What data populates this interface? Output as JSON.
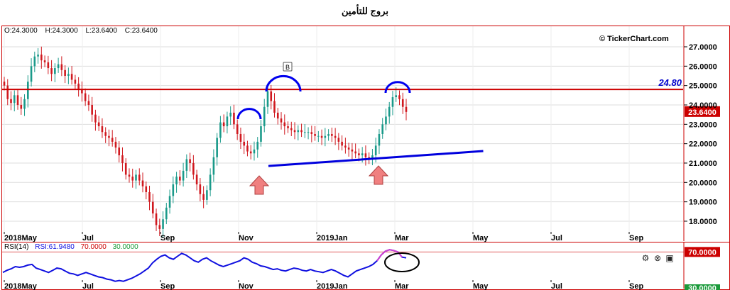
{
  "title": "بروج للتأمين",
  "watermark": "© TickerChart.com",
  "ohlc": {
    "open": "O:24.3000",
    "high": "H:24.3000",
    "low": "L:23.6400",
    "close": "C:23.6400"
  },
  "rsi_legend": {
    "name": "RSI(14)",
    "value": "RSI:61.9480",
    "upper": "70.0000",
    "lower": "30.0000"
  },
  "colors": {
    "up": "#1a9a8a",
    "down": "#d0191f",
    "rsi": "#1010e0",
    "accent": "#cc0000",
    "trend": "#0000dd",
    "arrow": "#f08080"
  },
  "icons": [
    "gear-icon",
    "close-icon",
    "maximize-icon"
  ],
  "annotations": {
    "resistance_label": "24.80",
    "marker_label": "B",
    "last_price_label": "23.6400",
    "rsi_upper_label": "70.0000",
    "rsi_lower_label": "30.0000"
  },
  "chart_data": {
    "type": "candlestick",
    "x_tick_labels": [
      "2018May",
      "Jul",
      "Sep",
      "Nov",
      "2019Jan",
      "Mar",
      "May",
      "Jul",
      "Sep"
    ],
    "y_tick_labels": [
      "18.0000",
      "19.0000",
      "20.0000",
      "21.0000",
      "22.0000",
      "23.0000",
      "24.0000",
      "25.0000",
      "26.0000",
      "27.0000"
    ],
    "ylim": [
      17.5,
      28
    ],
    "resistance": 24.8,
    "last_price": 23.64,
    "trendline": [
      {
        "month": 6.8,
        "value": 20.85
      },
      {
        "month": 12.3,
        "value": 21.62
      }
    ],
    "closes": [
      25.0,
      24.3,
      24.1,
      24.5,
      24.0,
      23.8,
      24.3,
      25.2,
      26.0,
      26.5,
      26.6,
      26.3,
      26.2,
      25.9,
      25.6,
      25.9,
      26.1,
      25.8,
      25.5,
      25.6,
      25.3,
      25.1,
      24.8,
      24.6,
      24.2,
      24.0,
      23.5,
      23.1,
      22.9,
      22.6,
      22.4,
      22.3,
      22.1,
      21.8,
      21.4,
      21.0,
      20.4,
      20.3,
      20.1,
      20.4,
      20.1,
      19.8,
      19.5,
      19.0,
      18.4,
      17.8,
      17.6,
      18.1,
      18.7,
      19.3,
      19.9,
      20.3,
      20.1,
      20.6,
      21.2,
      21.0,
      20.4,
      19.9,
      19.4,
      19.1,
      19.6,
      20.4,
      21.3,
      22.3,
      23.1,
      22.9,
      23.4,
      23.6,
      23.0,
      22.5,
      22.1,
      21.9,
      21.6,
      21.5,
      21.7,
      22.1,
      22.9,
      23.9,
      24.7,
      24.2,
      23.6,
      23.3,
      23.1,
      22.9,
      22.8,
      22.7,
      22.6,
      22.7,
      22.6,
      22.6,
      22.6,
      22.5,
      22.4,
      22.4,
      22.3,
      22.4,
      22.5,
      22.4,
      22.3,
      22.1,
      21.9,
      21.8,
      21.7,
      21.6,
      21.5,
      21.4,
      21.5,
      21.3,
      21.2,
      21.4,
      21.9,
      22.5,
      23.0,
      23.4,
      23.9,
      24.4,
      24.5,
      24.3,
      23.9,
      23.64
    ],
    "rsi_ylim": [
      20,
      80
    ],
    "rsi_values": [
      42,
      45,
      47,
      50,
      49,
      50,
      52,
      53,
      48,
      46,
      44,
      42,
      45,
      48,
      47,
      44,
      41,
      40,
      38,
      40,
      42,
      40,
      38,
      36,
      35,
      33,
      32,
      30,
      31,
      30,
      32,
      34,
      37,
      40,
      44,
      48,
      55,
      60,
      64,
      66,
      62,
      60,
      64,
      68,
      66,
      62,
      58,
      56,
      60,
      62,
      58,
      55,
      52,
      50,
      52,
      54,
      56,
      58,
      62,
      60,
      56,
      54,
      51,
      50,
      48,
      46,
      47,
      45,
      44,
      46,
      48,
      47,
      45,
      44,
      46,
      44,
      43,
      42,
      44,
      46,
      44,
      41,
      38,
      36,
      40,
      44,
      46,
      48,
      50,
      53,
      58,
      66,
      71,
      73,
      72,
      70,
      63,
      61.948
    ]
  }
}
